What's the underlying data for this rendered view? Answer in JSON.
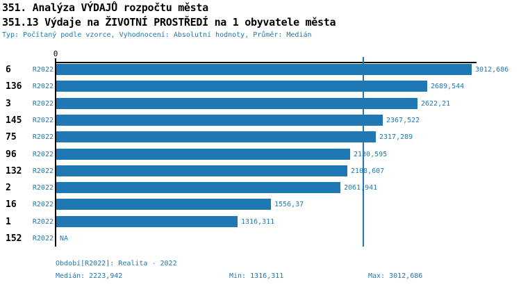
{
  "header": {
    "title1": "351. Analýza VÝDAJŮ rozpočtu města",
    "title2": "351.13 Výdaje na ŽIVOTNÍ PROSTŘEDÍ na 1 obyvatele města",
    "meta": "Typ: Počítaný podle vzorce, Vyhodnocení: Absolutní hodnoty, Průměr: Medián"
  },
  "chart_data": {
    "type": "bar",
    "orientation": "horizontal",
    "title": "351.13 Výdaje na ŽIVOTNÍ PROSTŘEDÍ na 1 obyvatele města",
    "axis_zero_label": "0",
    "xlim": [
      0,
      3012.686
    ],
    "categories": [
      "6",
      "136",
      "3",
      "145",
      "75",
      "96",
      "132",
      "2",
      "16",
      "1",
      "152"
    ],
    "series_label": "R2022",
    "values": [
      3012.686,
      2689.544,
      2622.21,
      2367.522,
      2317.289,
      2130.595,
      2108.607,
      2061.941,
      1556.37,
      1316.311,
      null
    ],
    "value_labels": [
      "3012,686",
      "2689,544",
      "2622,21",
      "2367,522",
      "2317,289",
      "2130,595",
      "2108,607",
      "2061,941",
      "1556,37",
      "1316,311",
      "NA"
    ],
    "median": 2223.942,
    "min": 1316.311,
    "max": 3012.686,
    "bar_color": "#1f77b4",
    "text_color": "#1f77b4",
    "median_line_color": "#1f77b4",
    "grid": false,
    "legend_position": "none"
  },
  "footer": {
    "period": "Období[R2022]: Realita - 2022",
    "median": "Medián: 2223,942",
    "min": "Min: 1316,311",
    "max": "Max: 3012,686"
  }
}
